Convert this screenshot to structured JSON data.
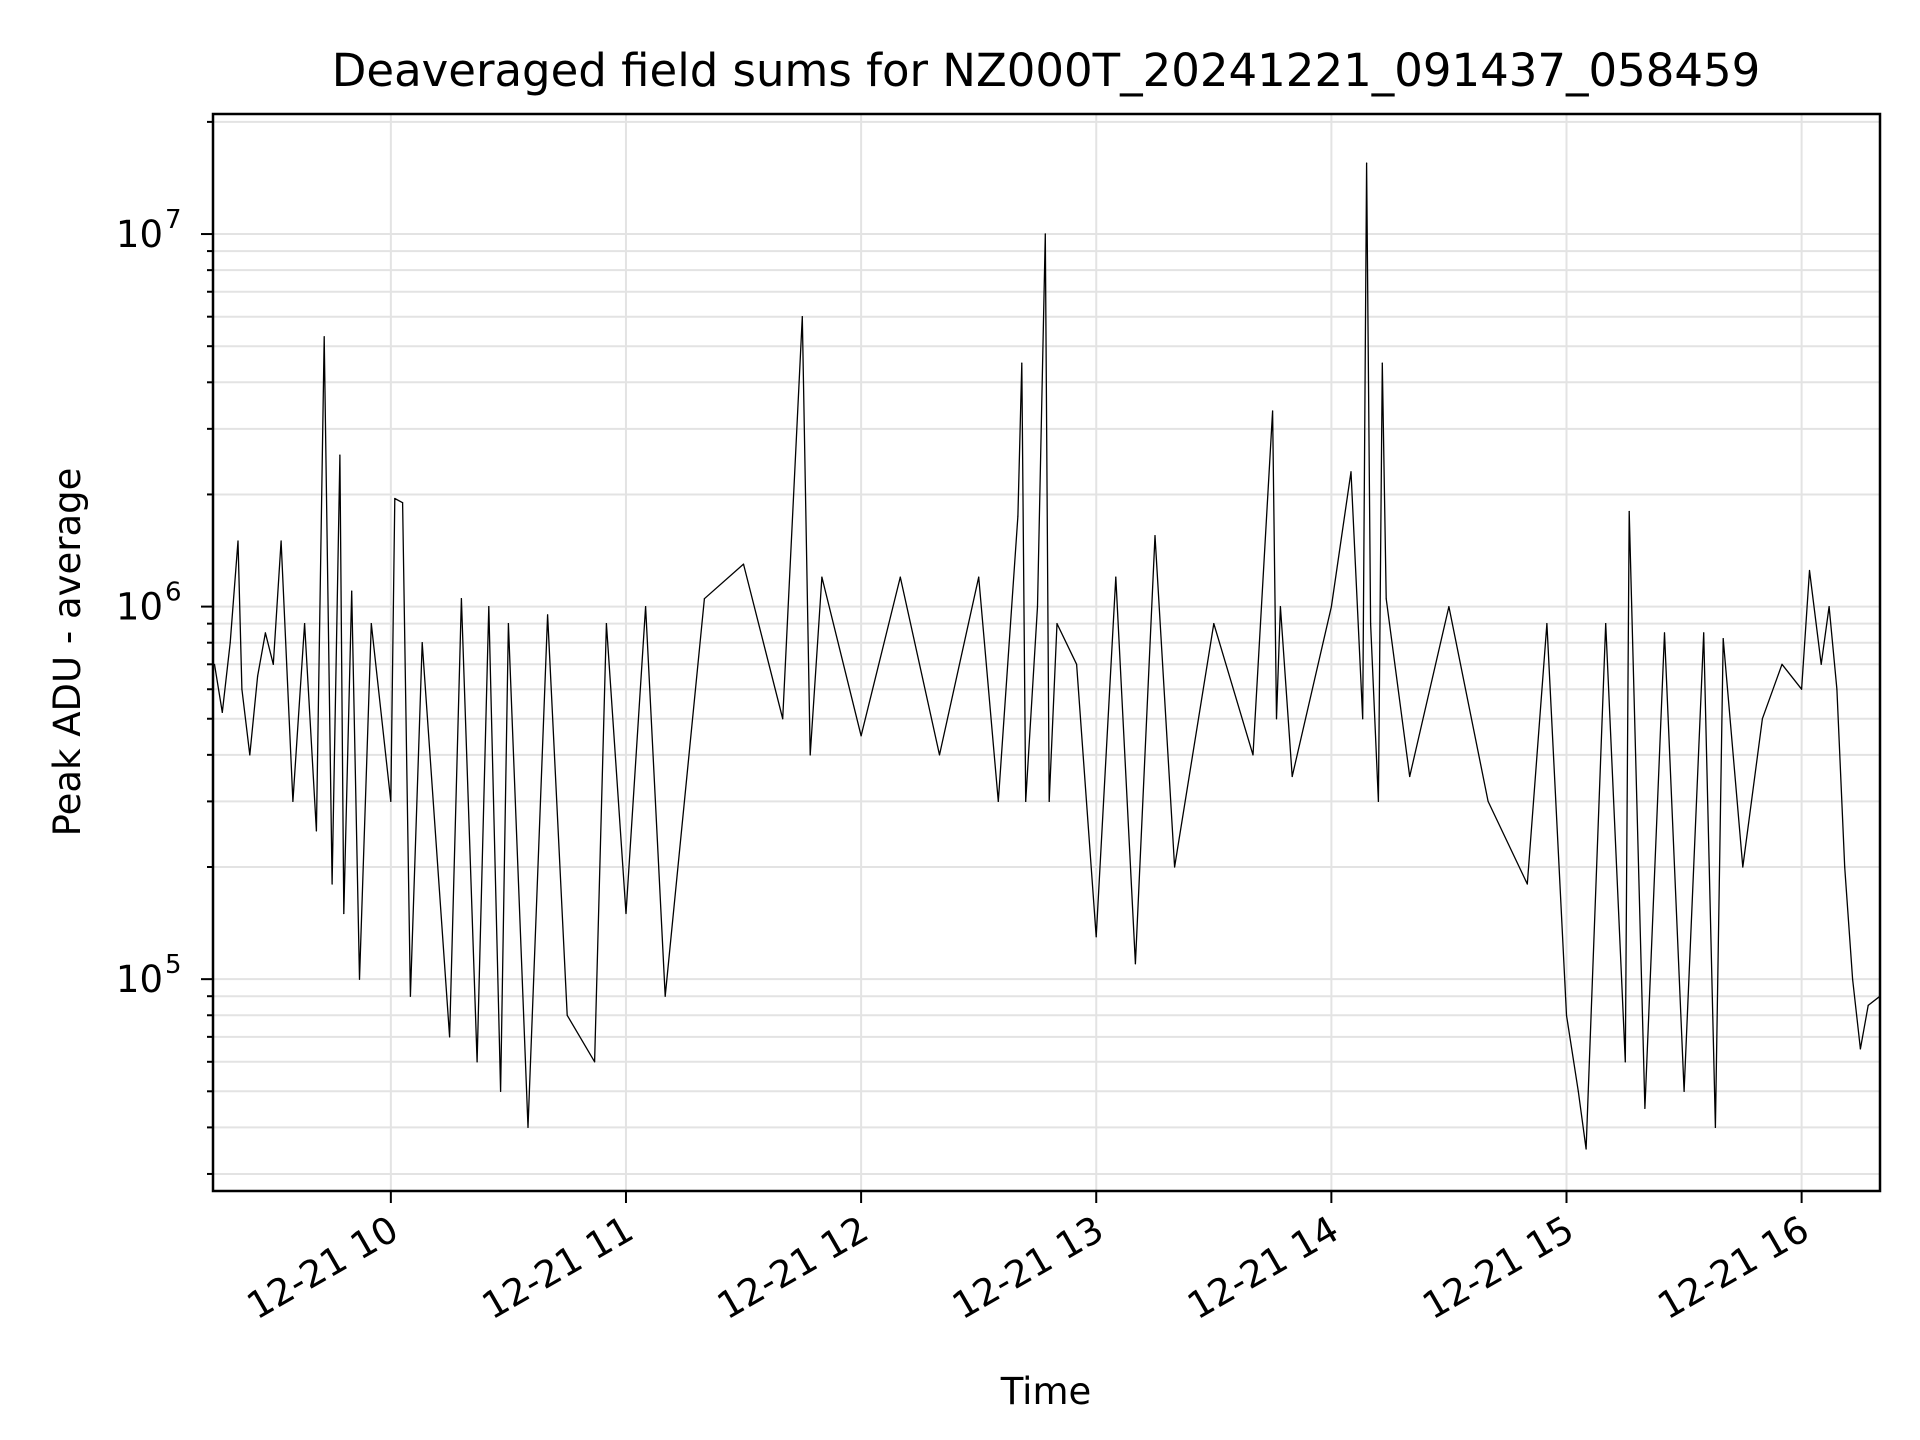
{
  "chart_data": {
    "type": "line",
    "title": "Deaveraged field sums for NZ000T_20241221_091437_058459",
    "xlabel": "Time",
    "ylabel": "Peak ADU - average",
    "yscale": "log",
    "ylim": [
      27000,
      21000000
    ],
    "xlim": [
      "2024-12-21 09:14:37",
      "2024-12-21 16:20:00"
    ],
    "grid": true,
    "legend": "none",
    "line_color": "#000000",
    "x_ticks": [
      {
        "value": "2024-12-21 10:00",
        "label": "12-21 10"
      },
      {
        "value": "2024-12-21 11:00",
        "label": "12-21 11"
      },
      {
        "value": "2024-12-21 12:00",
        "label": "12-21 12"
      },
      {
        "value": "2024-12-21 13:00",
        "label": "12-21 13"
      },
      {
        "value": "2024-12-21 14:00",
        "label": "12-21 14"
      },
      {
        "value": "2024-12-21 15:00",
        "label": "12-21 15"
      },
      {
        "value": "2024-12-21 16:00",
        "label": "12-21 16"
      }
    ],
    "y_ticks": [
      {
        "value": 100000,
        "base": "10",
        "exp": "5"
      },
      {
        "value": 1000000,
        "base": "10",
        "exp": "6"
      },
      {
        "value": 10000000,
        "base": "10",
        "exp": "7"
      }
    ],
    "series": [
      {
        "x": [
          "09:15",
          "09:17",
          "09:19",
          "09:21",
          "09:22",
          "09:24",
          "09:26",
          "09:28",
          "09:30",
          "09:32",
          "09:35",
          "09:38",
          "09:41",
          "09:43",
          "09:45",
          "09:47",
          "09:48",
          "09:50",
          "09:52",
          "09:55",
          "10:00",
          "10:01",
          "10:03",
          "10:05",
          "10:08",
          "10:15",
          "10:18",
          "10:22",
          "10:25",
          "10:28",
          "10:30",
          "10:35",
          "10:40",
          "10:45",
          "10:52",
          "10:55",
          "11:00",
          "11:05",
          "11:10",
          "11:20",
          "11:30",
          "11:40",
          "11:45",
          "11:47",
          "11:50",
          "12:00",
          "12:10",
          "12:20",
          "12:30",
          "12:35",
          "12:40",
          "12:41",
          "12:42",
          "12:45",
          "12:47",
          "12:48",
          "12:50",
          "12:55",
          "13:00",
          "13:05",
          "13:10",
          "13:15",
          "13:20",
          "13:30",
          "13:40",
          "13:45",
          "13:46",
          "13:47",
          "13:50",
          "14:00",
          "14:05",
          "14:08",
          "14:09",
          "14:10",
          "14:12",
          "14:13",
          "14:14",
          "14:20",
          "14:30",
          "14:40",
          "14:50",
          "14:55",
          "15:00",
          "15:03",
          "15:05",
          "15:10",
          "15:15",
          "15:16",
          "15:20",
          "15:25",
          "15:30",
          "15:35",
          "15:38",
          "15:40",
          "15:45",
          "15:50",
          "15:55",
          "16:00",
          "16:02",
          "16:05",
          "16:07",
          "16:09",
          "16:11",
          "16:13",
          "16:15",
          "16:17",
          "16:20"
        ],
        "values": [
          700000,
          520000,
          800000,
          1500000,
          600000,
          400000,
          650000,
          850000,
          700000,
          1500000,
          300000,
          900000,
          250000,
          5300000,
          180000,
          2550000,
          150000,
          1100000,
          100000,
          900000,
          300000,
          1950000,
          1900000,
          90000,
          800000,
          70000,
          1050000,
          60000,
          1000000,
          50000,
          900000,
          40000,
          950000,
          80000,
          60000,
          900000,
          150000,
          1000000,
          90000,
          1050000,
          1300000,
          500000,
          6000000,
          400000,
          1200000,
          450000,
          1200000,
          400000,
          1200000,
          300000,
          1750000,
          4500000,
          300000,
          1000000,
          10000000,
          300000,
          900000,
          700000,
          130000,
          1200000,
          110000,
          1550000,
          200000,
          900000,
          400000,
          3350000,
          500000,
          1000000,
          350000,
          1000000,
          2300000,
          500000,
          15500000,
          900000,
          300000,
          4500000,
          1050000,
          350000,
          1000000,
          300000,
          180000,
          900000,
          80000,
          50000,
          35000,
          900000,
          60000,
          1800000,
          45000,
          850000,
          50000,
          850000,
          40000,
          820000,
          200000,
          500000,
          700000,
          600000,
          1250000,
          700000,
          1000000,
          600000,
          200000,
          100000,
          65000,
          85000,
          90000
        ]
      }
    ]
  }
}
